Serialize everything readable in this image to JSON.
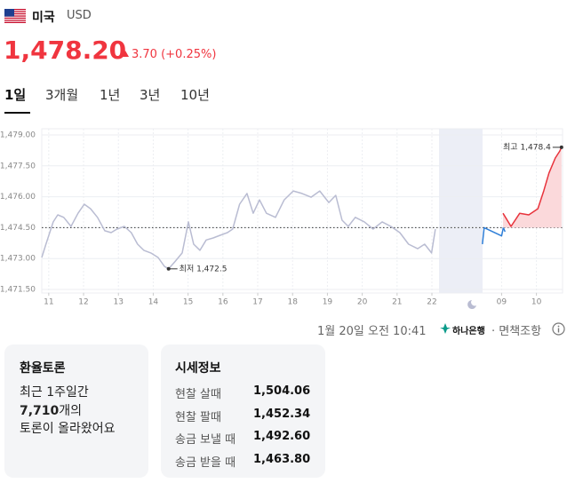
{
  "header": {
    "country": "미국",
    "currency": "USD",
    "price": "1,478.20",
    "change": "3.70 (+0.25%)"
  },
  "tabs": [
    "1일",
    "3개월",
    "1년",
    "3년",
    "10년"
  ],
  "chart_data": {
    "type": "line",
    "xlim": [
      10.8,
      25.75
    ],
    "xticks": [
      11,
      12,
      13,
      14,
      15,
      16,
      17,
      18,
      19,
      20,
      21,
      22,
      {
        "value": 24,
        "label": "09"
      },
      {
        "value": 25,
        "label": "10"
      }
    ],
    "ylim": [
      1471.5,
      1479.0
    ],
    "yticks": [
      {
        "value": 1479.0,
        "label": "1,479.00"
      },
      {
        "value": 1477.5,
        "label": "1,477.50"
      },
      {
        "value": 1476.0,
        "label": "1,476.00"
      },
      {
        "value": 1474.5,
        "label": "1,474.50"
      },
      {
        "value": 1473.0,
        "label": "1,473.00"
      },
      {
        "value": 1471.5,
        "label": "1,471.50"
      }
    ],
    "grid": true,
    "reference_line": 1474.5,
    "series": [
      {
        "color": "#b9bcd2",
        "x": [
          10.8,
          10.92,
          11.13,
          11.26,
          11.43,
          11.64,
          11.84,
          12.02,
          12.2,
          12.4,
          12.61,
          12.79,
          12.96,
          13.17,
          13.37,
          13.55,
          13.73,
          13.93,
          14.14,
          14.32,
          14.44,
          14.62,
          14.83,
          15.01,
          15.16,
          15.34,
          15.52,
          15.72,
          15.92,
          16.13,
          16.28,
          16.48,
          16.69,
          16.87,
          17.05,
          17.25,
          17.51,
          17.76,
          18.02,
          18.27,
          18.53,
          18.78,
          19.04,
          19.24,
          19.42,
          19.6,
          19.8,
          20.06,
          20.31,
          20.57,
          20.82,
          21.08,
          21.33,
          21.59,
          21.79,
          21.99,
          22.1
        ],
        "values": [
          1473.05,
          1473.7,
          1474.78,
          1475.12,
          1475.0,
          1474.56,
          1475.2,
          1475.64,
          1475.42,
          1475.0,
          1474.35,
          1474.26,
          1474.43,
          1474.56,
          1474.26,
          1473.7,
          1473.4,
          1473.27,
          1473.05,
          1472.62,
          1472.5,
          1472.84,
          1473.27,
          1474.78,
          1473.7,
          1473.4,
          1473.9,
          1474.0,
          1474.13,
          1474.26,
          1474.43,
          1475.64,
          1476.16,
          1475.2,
          1475.85,
          1475.2,
          1475.0,
          1475.85,
          1476.28,
          1476.16,
          1475.98,
          1476.28,
          1475.72,
          1476.07,
          1474.86,
          1474.56,
          1475.0,
          1474.78,
          1474.43,
          1474.78,
          1474.56,
          1474.26,
          1473.7,
          1473.48,
          1473.7,
          1473.27,
          1474.43
        ]
      },
      {
        "color": "#2f7fd8",
        "x": [
          23.45,
          23.5,
          24.0,
          24.05,
          24.1
        ],
        "values": [
          1473.7,
          1474.5,
          1474.1,
          1474.5,
          1474.3
        ]
      },
      {
        "color": "#e8333c",
        "fill": "#fbd9db",
        "x": [
          24.04,
          24.27,
          24.52,
          24.78,
          25.04,
          25.21,
          25.36,
          25.54,
          25.67,
          25.72
        ],
        "values": [
          1475.2,
          1474.56,
          1475.2,
          1475.12,
          1475.42,
          1476.28,
          1477.15,
          1477.88,
          1478.22,
          1478.4
        ]
      }
    ],
    "annotations": [
      {
        "label": "최저 1,472.5",
        "x": 14.44,
        "y": 1472.5
      },
      {
        "label": "최고 1,478.4",
        "x": 25.72,
        "y": 1478.4
      }
    ]
  },
  "footer": {
    "timestamp": "1월 20일 오전 10:41",
    "bank": "하나은행",
    "disclaimer": "· 면책조항"
  },
  "cards": {
    "discussion": {
      "title": "환율토론",
      "line1": "최근 1주일간",
      "count": "7,710",
      "count_suffix": "개의",
      "line3": "토론이 올라왔어요"
    },
    "quotes": {
      "title": "시세정보",
      "rows": [
        [
          "현찰 살때",
          "1,504.06"
        ],
        [
          "현찰 팔때",
          "1,452.34"
        ],
        [
          "송금 보낼 때",
          "1,492.60"
        ],
        [
          "송금 받을 때",
          "1,463.80"
        ]
      ]
    }
  }
}
